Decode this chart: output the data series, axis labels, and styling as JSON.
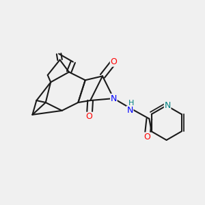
{
  "background_color": "#f0f0f0",
  "bond_color": "#1a1a1a",
  "bond_width": 1.5,
  "atom_colors": {
    "O": "#ff0000",
    "N": "#0000ff",
    "N_pyridine": "#008080",
    "H": "#008080",
    "C": "#1a1a1a"
  },
  "font_size_atom": 9,
  "title": ""
}
